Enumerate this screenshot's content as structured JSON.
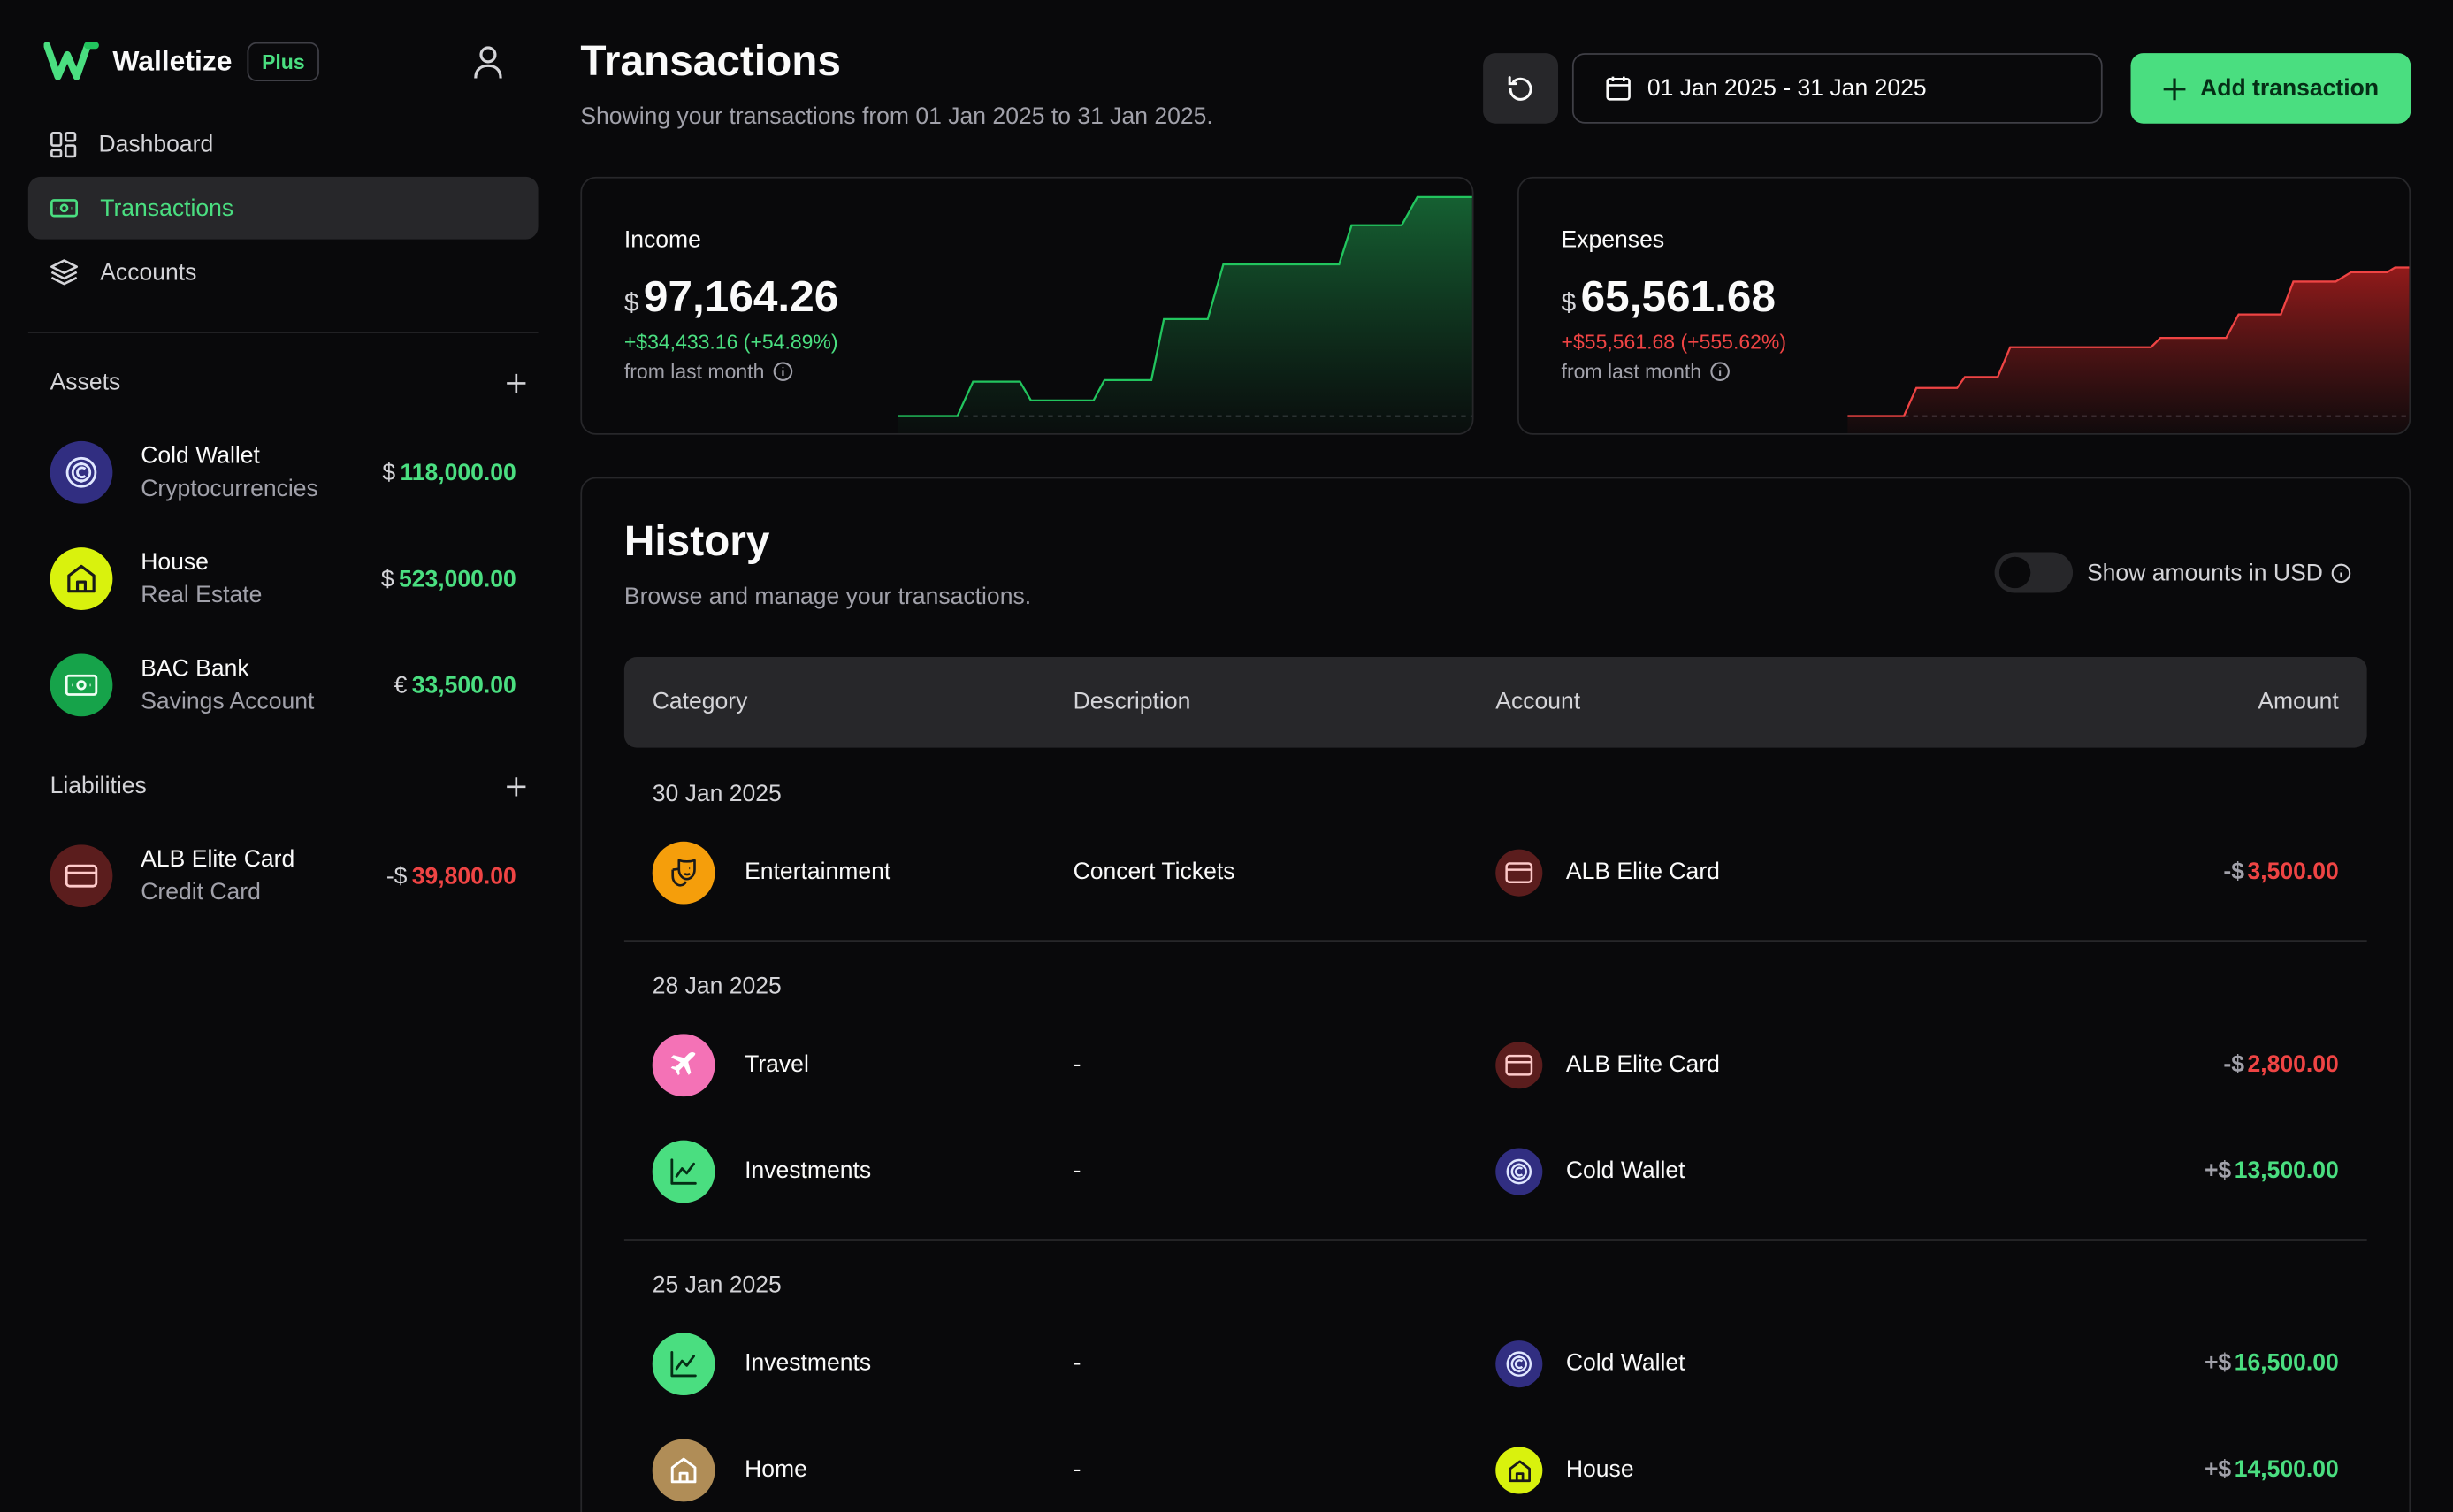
{
  "app": {
    "name": "Walletize",
    "plan_badge": "Plus"
  },
  "nav": [
    {
      "label": "Dashboard",
      "icon": "dashboard-icon",
      "active": false
    },
    {
      "label": "Transactions",
      "icon": "banknote-icon",
      "active": true
    },
    {
      "label": "Accounts",
      "icon": "layers-icon",
      "active": false
    }
  ],
  "assets": {
    "heading": "Assets",
    "items": [
      {
        "name": "Cold Wallet",
        "type": "Cryptocurrencies",
        "currency": "$",
        "amount": "118,000.00",
        "icon": "crypto-coin-icon",
        "color": "#3730a3"
      },
      {
        "name": "House",
        "type": "Real Estate",
        "currency": "$",
        "amount": "523,000.00",
        "icon": "home-icon",
        "color": "#d9f20d"
      },
      {
        "name": "BAC Bank",
        "type": "Savings Account",
        "currency": "€",
        "amount": "33,500.00",
        "icon": "banknote-icon",
        "color": "#16a34a"
      }
    ]
  },
  "liabilities": {
    "heading": "Liabilities",
    "items": [
      {
        "name": "ALB Elite Card",
        "type": "Credit Card",
        "currency": "-$",
        "amount": "39,800.00",
        "icon": "credit-card-icon",
        "color": "#7f1d1d"
      }
    ]
  },
  "header": {
    "title": "Transactions",
    "subtitle": "Showing your transactions from 01 Jan 2025 to 31 Jan 2025.",
    "date_range": "01 Jan 2025 - 31 Jan 2025",
    "add_label": "Add transaction"
  },
  "income": {
    "label": "Income",
    "currency": "$",
    "amount": "97,164.26",
    "change": "+$34,433.16 (+54.89%)",
    "from": "from last month"
  },
  "expenses": {
    "label": "Expenses",
    "currency": "$",
    "amount": "65,561.68",
    "change": "+$55,561.68 (+555.62%)",
    "from": "from last month"
  },
  "history": {
    "title": "History",
    "subtitle": "Browse and manage your transactions.",
    "toggle_label": "Show amounts in USD",
    "columns": {
      "category": "Category",
      "description": "Description",
      "account": "Account",
      "amount": "Amount"
    },
    "groups": [
      {
        "date": "30 Jan 2025",
        "rows": [
          {
            "category": "Entertainment",
            "description": "Concert Tickets",
            "account": "ALB Elite Card",
            "sign": "-$",
            "amount": "3,500.00",
            "kind": "neg"
          }
        ]
      },
      {
        "date": "28 Jan 2025",
        "rows": [
          {
            "category": "Travel",
            "description": "-",
            "account": "ALB Elite Card",
            "sign": "-$",
            "amount": "2,800.00",
            "kind": "neg"
          },
          {
            "category": "Investments",
            "description": "-",
            "account": "Cold Wallet",
            "sign": "+$",
            "amount": "13,500.00",
            "kind": "pos"
          }
        ]
      },
      {
        "date": "25 Jan 2025",
        "rows": [
          {
            "category": "Investments",
            "description": "-",
            "account": "Cold Wallet",
            "sign": "+$",
            "amount": "16,500.00",
            "kind": "pos"
          },
          {
            "category": "Home",
            "description": "-",
            "account": "House",
            "sign": "+$",
            "amount": "14,500.00",
            "kind": "pos"
          }
        ]
      }
    ]
  },
  "colors": {
    "accent": "#4ade80",
    "negative": "#ef4444",
    "income_fill": "#166534",
    "expense_fill": "#7f1d1d"
  }
}
